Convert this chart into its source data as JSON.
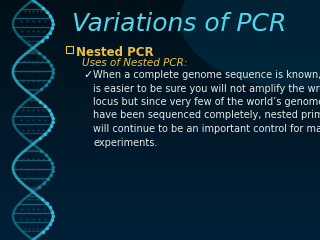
{
  "title": "Variations of PCR",
  "title_color": "#4dd8f0",
  "title_fontsize": 18,
  "bullet1_text": "Nested PCR",
  "bullet1_color": "#f0c040",
  "bullet1_fontsize": 8.5,
  "sub_label": "Uses of Nested PCR:",
  "sub_label_color": "#f0c040",
  "sub_label_fontsize": 7.5,
  "body_lines": [
    "When a complete genome sequence is known, it",
    "is easier to be sure you will not amplify the wrong",
    "locus but since very few of the world’s genomes",
    "have been sequenced completely, nested primers",
    "will continue to be an important control for many",
    "experiments."
  ],
  "body_color": "#e8e8e8",
  "body_fontsize": 7,
  "bg_top": "#002030",
  "bg_bottom": "#001018",
  "bg_mid_right": "#004060",
  "dna_strand1": "#30b8d0",
  "dna_strand2": "#1a9aaa",
  "dna_bar": "#2080a0",
  "dna_dot": "#1a7090"
}
